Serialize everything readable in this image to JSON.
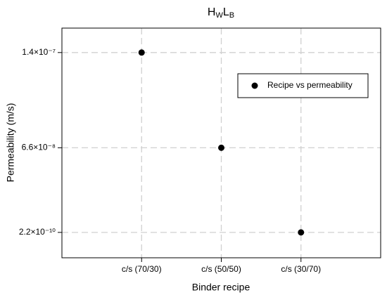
{
  "chart_data": {
    "type": "scatter",
    "title": "HWLB",
    "x_label": "Binder recipe",
    "y_label": "Permeability (m/s)",
    "categories": [
      "c/s (70/30)",
      "c/s (50/50)",
      "c/s (30/70)"
    ],
    "series": [
      {
        "name": "Recipe vs permeability",
        "color": "#000000",
        "values": [
          1.4e-07,
          6.6e-08,
          2.2e-10
        ]
      }
    ],
    "ylim": [
      -1.95e-08,
      1.59e-07
    ],
    "yticks": [
      {
        "value": 2.2e-10,
        "label": "2.2×10⁻¹⁰"
      },
      {
        "value": 6.6e-08,
        "label": "6.6×10⁻⁸"
      },
      {
        "value": 1.4e-07,
        "label": "1.4×10⁻⁷"
      }
    ],
    "grid": true,
    "legend": "upper right"
  }
}
